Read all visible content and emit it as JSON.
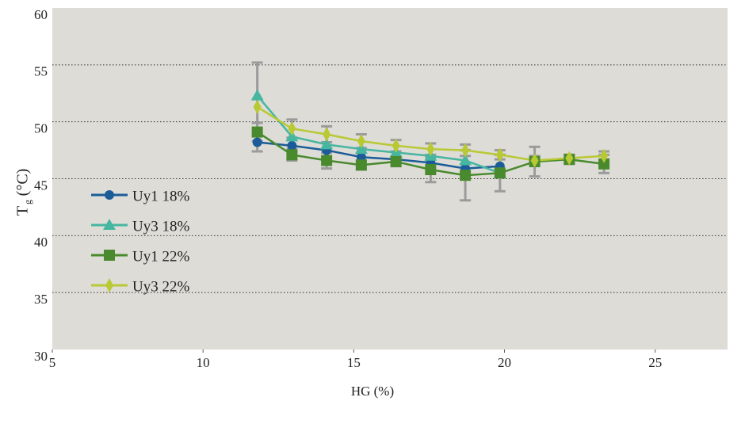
{
  "chart_data": {
    "type": "line",
    "xlabel": "HG (%)",
    "ylabel": {
      "symbol": "T",
      "subscript": "g",
      "unit": "(°C)"
    },
    "xlim": [
      5,
      27.4
    ],
    "xticks": [
      5,
      10,
      15,
      20,
      25
    ],
    "ylim": [
      30,
      60
    ],
    "yticks": [
      30,
      35,
      40,
      45,
      50,
      55,
      60
    ],
    "grid": true,
    "legend": "left",
    "error_color": "#9b9b9b",
    "series": [
      {
        "name": "Uy1 18%",
        "color": "#1b5c98",
        "marker": "circle",
        "x": [
          11.8,
          12.95,
          14.1,
          15.25,
          16.4,
          17.55,
          18.7,
          19.85
        ],
        "values": [
          48.2,
          47.9,
          47.5,
          46.9,
          46.7,
          46.4,
          45.9,
          46.1
        ]
      },
      {
        "name": "Uy3 18%",
        "color": "#46b6a0",
        "marker": "triangle",
        "x": [
          11.8,
          12.95,
          14.1,
          15.25,
          16.4,
          17.55,
          18.7,
          19.85
        ],
        "values": [
          52.3,
          48.7,
          48.0,
          47.6,
          47.3,
          47.0,
          46.6,
          45.5
        ]
      },
      {
        "name": "Uy1 22%",
        "color": "#4a8a2e",
        "marker": "square",
        "x": [
          11.8,
          12.95,
          14.1,
          15.25,
          16.4,
          17.55,
          18.7,
          19.85,
          21.0,
          22.15,
          23.3
        ],
        "values": [
          49.1,
          47.1,
          46.6,
          46.2,
          46.5,
          45.8,
          45.3,
          45.5,
          46.5,
          46.7,
          46.3
        ],
        "errors": [
          0.8,
          0.5,
          0.7,
          0.4,
          0.4,
          1.1,
          2.2,
          1.6,
          1.3,
          0.4,
          0.8
        ]
      },
      {
        "name": "Uy3 22%",
        "color": "#b9c934",
        "marker": "diamond",
        "x": [
          11.8,
          12.95,
          14.1,
          15.25,
          16.4,
          17.55,
          18.7,
          19.85,
          21.0,
          22.15,
          23.3
        ],
        "values": [
          51.3,
          49.4,
          48.9,
          48.3,
          47.9,
          47.6,
          47.5,
          47.1,
          46.6,
          46.8,
          47.0
        ],
        "errors": [
          3.9,
          0.8,
          0.7,
          0.6,
          0.5,
          0.5,
          0.5,
          0.4,
          0.4,
          0.3,
          0.4
        ]
      }
    ]
  }
}
